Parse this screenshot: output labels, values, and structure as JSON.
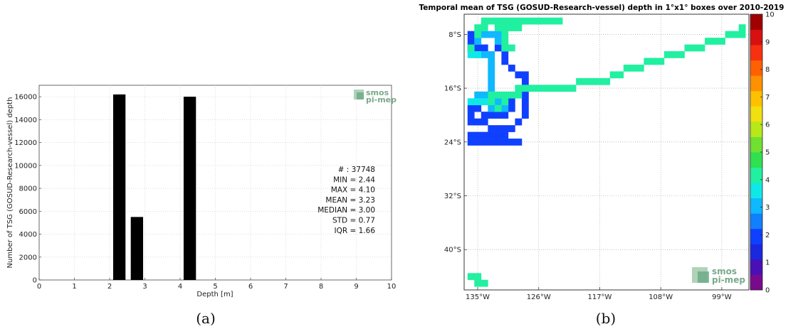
{
  "chart_data": [
    {
      "type": "bar",
      "xlabel": "Depth [m]",
      "ylabel": "Number of TSG (GOSUD-Research-vessel) depth",
      "xlim": [
        0,
        10
      ],
      "ylim": [
        0,
        17000
      ],
      "x_ticks": [
        "0",
        "1",
        "2",
        "3",
        "4",
        "5",
        "6",
        "7",
        "8",
        "9",
        "10"
      ],
      "y_ticks": [
        "0",
        "2000",
        "4000",
        "6000",
        "8000",
        "10000",
        "12000",
        "14000",
        "16000"
      ],
      "grid": true,
      "bars": [
        {
          "x_start": 2.1,
          "x_end": 2.45,
          "value": 16200
        },
        {
          "x_start": 2.6,
          "x_end": 2.95,
          "value": 5500
        },
        {
          "x_start": 4.1,
          "x_end": 4.45,
          "value": 16000
        }
      ],
      "stats": [
        "# : 37748",
        "MIN = 2.44",
        "MAX =  4.10",
        "MEAN = 3.23",
        "MEDIAN = 3.00",
        "STD = 0.77",
        "IQR = 1.66"
      ],
      "logo": [
        "smos",
        "pi-mep"
      ],
      "panel_label": "(a)"
    },
    {
      "type": "heatmap",
      "title": "Temporal mean of TSG (GOSUD-Research-vessel) depth in 1°x1° boxes over 2010-2019",
      "lat_ticks": [
        "8°S",
        "16°S",
        "24°S",
        "32°S",
        "40°S"
      ],
      "lon_ticks": [
        "135°W",
        "126°W",
        "117°W",
        "108°W",
        "99°W"
      ],
      "grid": true,
      "colorbar": {
        "min": 0,
        "max": 10,
        "ticks": [
          "0",
          "1",
          "2",
          "3",
          "4",
          "5",
          "6",
          "7",
          "8",
          "9",
          "10"
        ],
        "colors": [
          "#7a0a8c",
          "#4a10b8",
          "#1a28e0",
          "#1040ff",
          "#1080ff",
          "#10b8ff",
          "#10e8e8",
          "#20f0a0",
          "#30e050",
          "#70e030",
          "#b8e818",
          "#f0e010",
          "#ffc000",
          "#ff9000",
          "#ff6000",
          "#f83010",
          "#d81010",
          "#a00000"
        ]
      },
      "cells": [
        {
          "lon": -136,
          "lat": -8,
          "value": 2.2
        },
        {
          "lon": -136,
          "lat": -9,
          "value": 2.2
        },
        {
          "lon": -136,
          "lat": -10,
          "value": 2.2
        },
        {
          "lon": -135,
          "lat": -10,
          "value": 2.2
        },
        {
          "lon": -134,
          "lat": -10,
          "value": 2.2
        },
        {
          "lon": -132,
          "lat": -10,
          "value": 2.2
        },
        {
          "lon": -131,
          "lat": -11,
          "value": 2.2
        },
        {
          "lon": -131,
          "lat": -12,
          "value": 2.2
        },
        {
          "lon": -130,
          "lat": -13,
          "value": 2.2
        },
        {
          "lon": -129,
          "lat": -14,
          "value": 2.2
        },
        {
          "lon": -128,
          "lat": -14,
          "value": 2.2
        },
        {
          "lon": -128,
          "lat": -15,
          "value": 2.2
        },
        {
          "lon": -128,
          "lat": -16,
          "value": 2.2
        },
        {
          "lon": -128,
          "lat": -17,
          "value": 2.2
        },
        {
          "lon": -128,
          "lat": -18,
          "value": 2.2
        },
        {
          "lon": -128,
          "lat": -19,
          "value": 2.2
        },
        {
          "lon": -128,
          "lat": -20,
          "value": 2.2
        },
        {
          "lon": -129,
          "lat": -21,
          "value": 2.2
        },
        {
          "lon": -130,
          "lat": -22,
          "value": 2.2
        },
        {
          "lon": -131,
          "lat": -22,
          "value": 2.2
        },
        {
          "lon": -132,
          "lat": -22,
          "value": 2.2
        },
        {
          "lon": -133,
          "lat": -22,
          "value": 2.2
        },
        {
          "lon": -134,
          "lat": -21,
          "value": 2.2
        },
        {
          "lon": -135,
          "lat": -21,
          "value": 2.2
        },
        {
          "lon": -136,
          "lat": -21,
          "value": 2.2
        },
        {
          "lon": -136,
          "lat": -20,
          "value": 2.2
        },
        {
          "lon": -136,
          "lat": -19,
          "value": 2.2
        },
        {
          "lon": -135,
          "lat": -19,
          "value": 2.2
        },
        {
          "lon": -134,
          "lat": -20,
          "value": 2.2
        },
        {
          "lon": -133,
          "lat": -20,
          "value": 2.2
        },
        {
          "lon": -132,
          "lat": -20,
          "value": 2.2
        },
        {
          "lon": -131,
          "lat": -20,
          "value": 2.2
        },
        {
          "lon": -130,
          "lat": -19,
          "value": 2.2
        },
        {
          "lon": -130,
          "lat": -18,
          "value": 2.2
        },
        {
          "lon": -136,
          "lat": -23,
          "value": 2.2
        },
        {
          "lon": -135,
          "lat": -23,
          "value": 2.2
        },
        {
          "lon": -134,
          "lat": -23,
          "value": 2.2
        },
        {
          "lon": -133,
          "lat": -23,
          "value": 2.2
        },
        {
          "lon": -132,
          "lat": -23,
          "value": 2.2
        },
        {
          "lon": -131,
          "lat": -23,
          "value": 2.2
        },
        {
          "lon": -136,
          "lat": -24,
          "value": 2.2
        },
        {
          "lon": -135,
          "lat": -24,
          "value": 2.2
        },
        {
          "lon": -134,
          "lat": -24,
          "value": 2.2
        },
        {
          "lon": -133,
          "lat": -24,
          "value": 2.2
        },
        {
          "lon": -132,
          "lat": -24,
          "value": 2.2
        },
        {
          "lon": -131,
          "lat": -24,
          "value": 2.2
        },
        {
          "lon": -130,
          "lat": -24,
          "value": 2.2
        },
        {
          "lon": -129,
          "lat": -24,
          "value": 2.2
        },
        {
          "lon": -133,
          "lat": -11,
          "value": 3.3
        },
        {
          "lon": -134,
          "lat": -11,
          "value": 3.0
        },
        {
          "lon": -133,
          "lat": -12,
          "value": 3.2
        },
        {
          "lon": -133,
          "lat": -13,
          "value": 3.2
        },
        {
          "lon": -133,
          "lat": -14,
          "value": 3.2
        },
        {
          "lon": -133,
          "lat": -15,
          "value": 3.2
        },
        {
          "lon": -133,
          "lat": -16,
          "value": 3.2
        },
        {
          "lon": -134,
          "lat": -17,
          "value": 3.2
        },
        {
          "lon": -135,
          "lat": -17,
          "value": 3.0
        },
        {
          "lon": -132,
          "lat": -18,
          "value": 3.2
        },
        {
          "lon": -131,
          "lat": -19,
          "value": 3.2
        },
        {
          "lon": -133,
          "lat": -19,
          "value": 3.0
        },
        {
          "lon": -135,
          "lat": -9,
          "value": 3.2
        },
        {
          "lon": -134,
          "lat": -8,
          "value": 3.2
        },
        {
          "lon": -133,
          "lat": -8,
          "value": 3.2
        },
        {
          "lon": -132,
          "lat": -8,
          "value": 3.2
        },
        {
          "lon": -135,
          "lat": -11,
          "value": 3.2
        },
        {
          "lon": -132,
          "lat": -9,
          "value": 3.2
        },
        {
          "lon": -131,
          "lat": -10,
          "value": 3.2
        },
        {
          "lon": -136,
          "lat": -11,
          "value": 3.8
        },
        {
          "lon": -135,
          "lat": -11,
          "value": 3.8
        },
        {
          "lon": -136,
          "lat": -18,
          "value": 3.8
        },
        {
          "lon": -135,
          "lat": -18,
          "value": 3.8
        },
        {
          "lon": -134,
          "lat": -18,
          "value": 3.8
        },
        {
          "lon": -134,
          "lat": -6,
          "value": 4.2
        },
        {
          "lon": -133,
          "lat": -6,
          "value": 4.2
        },
        {
          "lon": -132,
          "lat": -6,
          "value": 4.2
        },
        {
          "lon": -131,
          "lat": -6,
          "value": 4.2
        },
        {
          "lon": -130,
          "lat": -6,
          "value": 4.2
        },
        {
          "lon": -129,
          "lat": -6,
          "value": 4.2
        },
        {
          "lon": -128,
          "lat": -6,
          "value": 4.2
        },
        {
          "lon": -127,
          "lat": -6,
          "value": 4.2
        },
        {
          "lon": -126,
          "lat": -6,
          "value": 4.2
        },
        {
          "lon": -125,
          "lat": -6,
          "value": 4.2
        },
        {
          "lon": -124,
          "lat": -6,
          "value": 4.2
        },
        {
          "lon": -123,
          "lat": -6,
          "value": 4.2
        },
        {
          "lon": -132,
          "lat": -7,
          "value": 4.2
        },
        {
          "lon": -131,
          "lat": -7,
          "value": 4.2
        },
        {
          "lon": -130,
          "lat": -7,
          "value": 4.2
        },
        {
          "lon": -129,
          "lat": -7,
          "value": 4.2
        },
        {
          "lon": -135,
          "lat": -7,
          "value": 4.2
        },
        {
          "lon": -134,
          "lat": -7,
          "value": 4.2
        },
        {
          "lon": -135,
          "lat": -8,
          "value": 4.2
        },
        {
          "lon": -131,
          "lat": -8,
          "value": 4.2
        },
        {
          "lon": -131,
          "lat": -9,
          "value": 4.2
        },
        {
          "lon": -131,
          "lat": -10,
          "value": 4.2
        },
        {
          "lon": -136,
          "lat": -10,
          "value": 4.2
        },
        {
          "lon": -127,
          "lat": -16,
          "value": 4.2
        },
        {
          "lon": -126,
          "lat": -16,
          "value": 4.2
        },
        {
          "lon": -125,
          "lat": -16,
          "value": 4.2
        },
        {
          "lon": -124,
          "lat": -16,
          "value": 4.2
        },
        {
          "lon": -123,
          "lat": -16,
          "value": 4.2
        },
        {
          "lon": -122,
          "lat": -16,
          "value": 4.2
        },
        {
          "lon": -121,
          "lat": -16,
          "value": 4.2
        },
        {
          "lon": -120,
          "lat": -15,
          "value": 4.2
        },
        {
          "lon": -119,
          "lat": -15,
          "value": 4.2
        },
        {
          "lon": -118,
          "lat": -15,
          "value": 4.2
        },
        {
          "lon": -117,
          "lat": -15,
          "value": 4.2
        },
        {
          "lon": -116,
          "lat": -15,
          "value": 4.2
        },
        {
          "lon": -115,
          "lat": -14,
          "value": 4.2
        },
        {
          "lon": -114,
          "lat": -14,
          "value": 4.2
        },
        {
          "lon": -113,
          "lat": -13,
          "value": 4.2
        },
        {
          "lon": -112,
          "lat": -13,
          "value": 4.2
        },
        {
          "lon": -111,
          "lat": -13,
          "value": 4.2
        },
        {
          "lon": -110,
          "lat": -12,
          "value": 4.2
        },
        {
          "lon": -109,
          "lat": -12,
          "value": 4.2
        },
        {
          "lon": -108,
          "lat": -12,
          "value": 4.2
        },
        {
          "lon": -107,
          "lat": -11,
          "value": 4.2
        },
        {
          "lon": -106,
          "lat": -11,
          "value": 4.2
        },
        {
          "lon": -105,
          "lat": -11,
          "value": 4.2
        },
        {
          "lon": -104,
          "lat": -10,
          "value": 4.2
        },
        {
          "lon": -103,
          "lat": -10,
          "value": 4.2
        },
        {
          "lon": -102,
          "lat": -10,
          "value": 4.2
        },
        {
          "lon": -101,
          "lat": -9,
          "value": 4.2
        },
        {
          "lon": -100,
          "lat": -9,
          "value": 4.2
        },
        {
          "lon": -99,
          "lat": -9,
          "value": 4.2
        },
        {
          "lon": -98,
          "lat": -8,
          "value": 4.2
        },
        {
          "lon": -97,
          "lat": -8,
          "value": 4.2
        },
        {
          "lon": -96,
          "lat": -8,
          "value": 4.2
        },
        {
          "lon": -96,
          "lat": -7,
          "value": 4.2
        },
        {
          "lon": -128,
          "lat": -16,
          "value": 4.2
        },
        {
          "lon": -129,
          "lat": -16,
          "value": 4.2
        },
        {
          "lon": -129,
          "lat": -17,
          "value": 4.2
        },
        {
          "lon": -130,
          "lat": -17,
          "value": 4.2
        },
        {
          "lon": -131,
          "lat": -17,
          "value": 4.2
        },
        {
          "lon": -132,
          "lat": -17,
          "value": 4.2
        },
        {
          "lon": -133,
          "lat": -17,
          "value": 4.2
        },
        {
          "lon": -131,
          "lat": -18,
          "value": 4.2
        },
        {
          "lon": -132,
          "lat": -19,
          "value": 4.2
        },
        {
          "lon": -133,
          "lat": -18,
          "value": 4.2
        },
        {
          "lon": -136,
          "lat": -44,
          "value": 4.2
        },
        {
          "lon": -135,
          "lat": -44,
          "value": 4.2
        },
        {
          "lon": -135,
          "lat": -45,
          "value": 4.2
        },
        {
          "lon": -134,
          "lat": -45,
          "value": 4.2
        },
        {
          "lon": -130,
          "lat": -10,
          "value": 4.2
        }
      ],
      "logo": [
        "smos",
        "pi-mep"
      ],
      "panel_label": "(b)"
    }
  ]
}
